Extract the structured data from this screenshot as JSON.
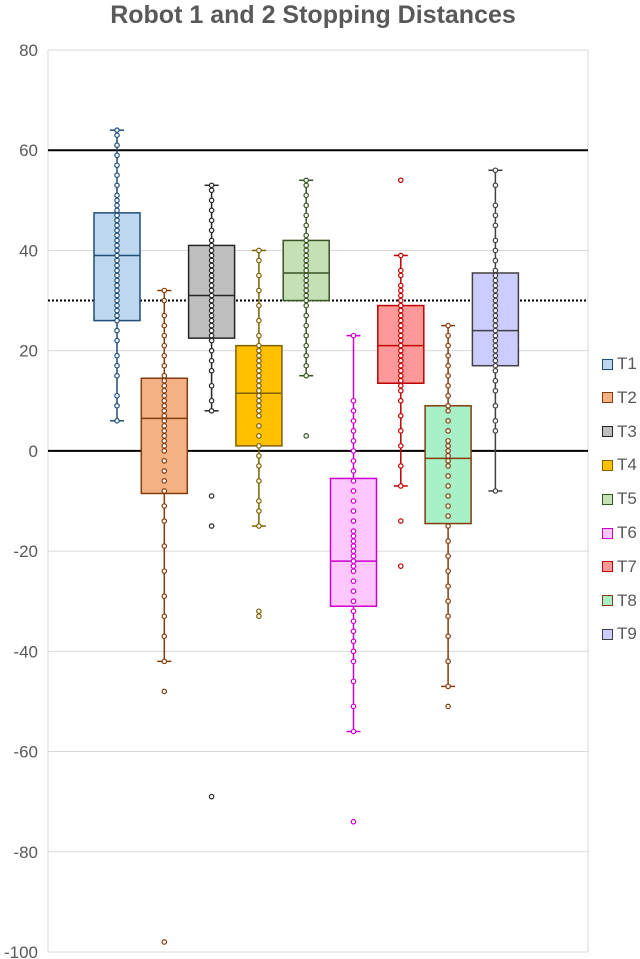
{
  "chart_data": {
    "type": "box",
    "title": "Robot 1 and 2 Stopping Distances",
    "xlabel": "",
    "ylabel": "",
    "ylim": [
      -100,
      80
    ],
    "yticks": [
      80,
      60,
      40,
      20,
      0,
      -20,
      -40,
      -60,
      -80,
      -100
    ],
    "grid": true,
    "legend_position": "right",
    "reference_lines": [
      {
        "value": 60,
        "style": "solid"
      },
      {
        "value": 30,
        "style": "dotted"
      },
      {
        "value": 0,
        "style": "solid"
      }
    ],
    "series": [
      {
        "name": "T1",
        "fill": "#bdd7ee",
        "stroke": "#1f4e79",
        "min": 6,
        "q1": 26,
        "median": 39,
        "q3": 47.5,
        "max": 64,
        "points": [
          6,
          9,
          11,
          15,
          17,
          19,
          22,
          24,
          26,
          27,
          28,
          29,
          30,
          31,
          32,
          33,
          34,
          35,
          36,
          37,
          38,
          39,
          40,
          41,
          42,
          43,
          44,
          45,
          46,
          47,
          48,
          49,
          50,
          51,
          53,
          55,
          57,
          59,
          61,
          63,
          64
        ]
      },
      {
        "name": "T2",
        "fill": "#f4b183",
        "stroke": "#843c0c",
        "min": -42,
        "q1": -8.5,
        "median": 6.5,
        "q3": 14.5,
        "max": 32,
        "points": [
          -98,
          -48,
          -42,
          -37,
          -33,
          -29,
          -24,
          -19,
          -14,
          -11,
          -8,
          -6,
          -4,
          -2,
          0,
          1,
          2,
          3,
          4,
          5,
          6,
          7,
          8,
          9,
          10,
          11,
          12,
          13,
          14,
          15,
          17,
          19,
          21,
          23,
          25,
          27,
          30,
          32
        ]
      },
      {
        "name": "T3",
        "fill": "#bfbfbf",
        "stroke": "#262626",
        "min": 8,
        "q1": 22.5,
        "median": 31,
        "q3": 41,
        "max": 53,
        "points": [
          -69,
          -15,
          -9,
          8,
          10,
          13,
          16,
          18,
          20,
          22,
          23,
          24,
          25,
          26,
          27,
          28,
          29,
          30,
          31,
          32,
          33,
          34,
          35,
          36,
          37,
          38,
          39,
          40,
          41,
          42,
          44,
          46,
          48,
          50,
          52,
          53
        ]
      },
      {
        "name": "T4",
        "fill": "#ffc000",
        "stroke": "#7f6000",
        "min": -15,
        "q1": 1,
        "median": 11.5,
        "q3": 21,
        "max": 40,
        "points": [
          -33,
          -32,
          -15,
          -12,
          -10,
          -6,
          -3,
          -1,
          1,
          3,
          5,
          7,
          8,
          9,
          10,
          11,
          12,
          13,
          14,
          15,
          16,
          17,
          18,
          19,
          20,
          21,
          23,
          26,
          29,
          32,
          35,
          38,
          40
        ]
      },
      {
        "name": "T5",
        "fill": "#c5e0b4",
        "stroke": "#375623",
        "min": 15,
        "q1": 30,
        "median": 35.5,
        "q3": 42,
        "max": 54,
        "points": [
          3,
          15,
          17,
          19,
          21,
          23,
          25,
          27,
          29,
          30,
          31,
          32,
          33,
          34,
          35,
          36,
          37,
          38,
          39,
          40,
          41,
          42,
          43,
          45,
          47,
          49,
          51,
          53,
          54
        ]
      },
      {
        "name": "T6",
        "fill": "#ffc6ff",
        "stroke": "#cc00cc",
        "min": -56,
        "q1": -31,
        "median": -22,
        "q3": -5.5,
        "max": 23,
        "points": [
          -74,
          -56,
          -51,
          -46,
          -42,
          -40,
          -38,
          -36,
          -34,
          -32,
          -30,
          -28,
          -26,
          -24,
          -23,
          -22,
          -21,
          -20,
          -19,
          -18,
          -17,
          -16,
          -14,
          -12,
          -10,
          -8,
          -6,
          -4,
          -2,
          0,
          2,
          4,
          6,
          8,
          10,
          23
        ]
      },
      {
        "name": "T7",
        "fill": "#ff9999",
        "stroke": "#c00000",
        "min": -7,
        "q1": 13.5,
        "median": 21,
        "q3": 29,
        "max": 39,
        "points": [
          -23,
          -14,
          -7,
          -3,
          1,
          4,
          7,
          10,
          12,
          13,
          14,
          15,
          16,
          17,
          18,
          19,
          20,
          21,
          22,
          23,
          24,
          25,
          26,
          27,
          28,
          29,
          30,
          31,
          32,
          33,
          35,
          36,
          39,
          54
        ]
      },
      {
        "name": "T8",
        "fill": "#a8f0c8",
        "stroke": "#843c0c",
        "min": -47,
        "q1": -14.5,
        "median": -1.5,
        "q3": 9,
        "max": 25,
        "points": [
          -51,
          -47,
          -42,
          -37,
          -33,
          -30,
          -27,
          -24,
          -21,
          -18,
          -15,
          -13,
          -11,
          -9,
          -7,
          -5,
          -3,
          -2,
          -1,
          0,
          1,
          2,
          4,
          6,
          8,
          9,
          11,
          13,
          15,
          17,
          19,
          21,
          23,
          25
        ]
      },
      {
        "name": "T9",
        "fill": "#ccccff",
        "stroke": "#404040",
        "min": -8,
        "q1": 17,
        "median": 24,
        "q3": 35.5,
        "max": 56,
        "points": [
          -8,
          4,
          6,
          9,
          12,
          14,
          16,
          17,
          18,
          19,
          20,
          21,
          22,
          23,
          24,
          25,
          26,
          27,
          28,
          29,
          30,
          31,
          32,
          33,
          34,
          35,
          36,
          38,
          40,
          42,
          45,
          47,
          49,
          53,
          56
        ]
      }
    ]
  }
}
